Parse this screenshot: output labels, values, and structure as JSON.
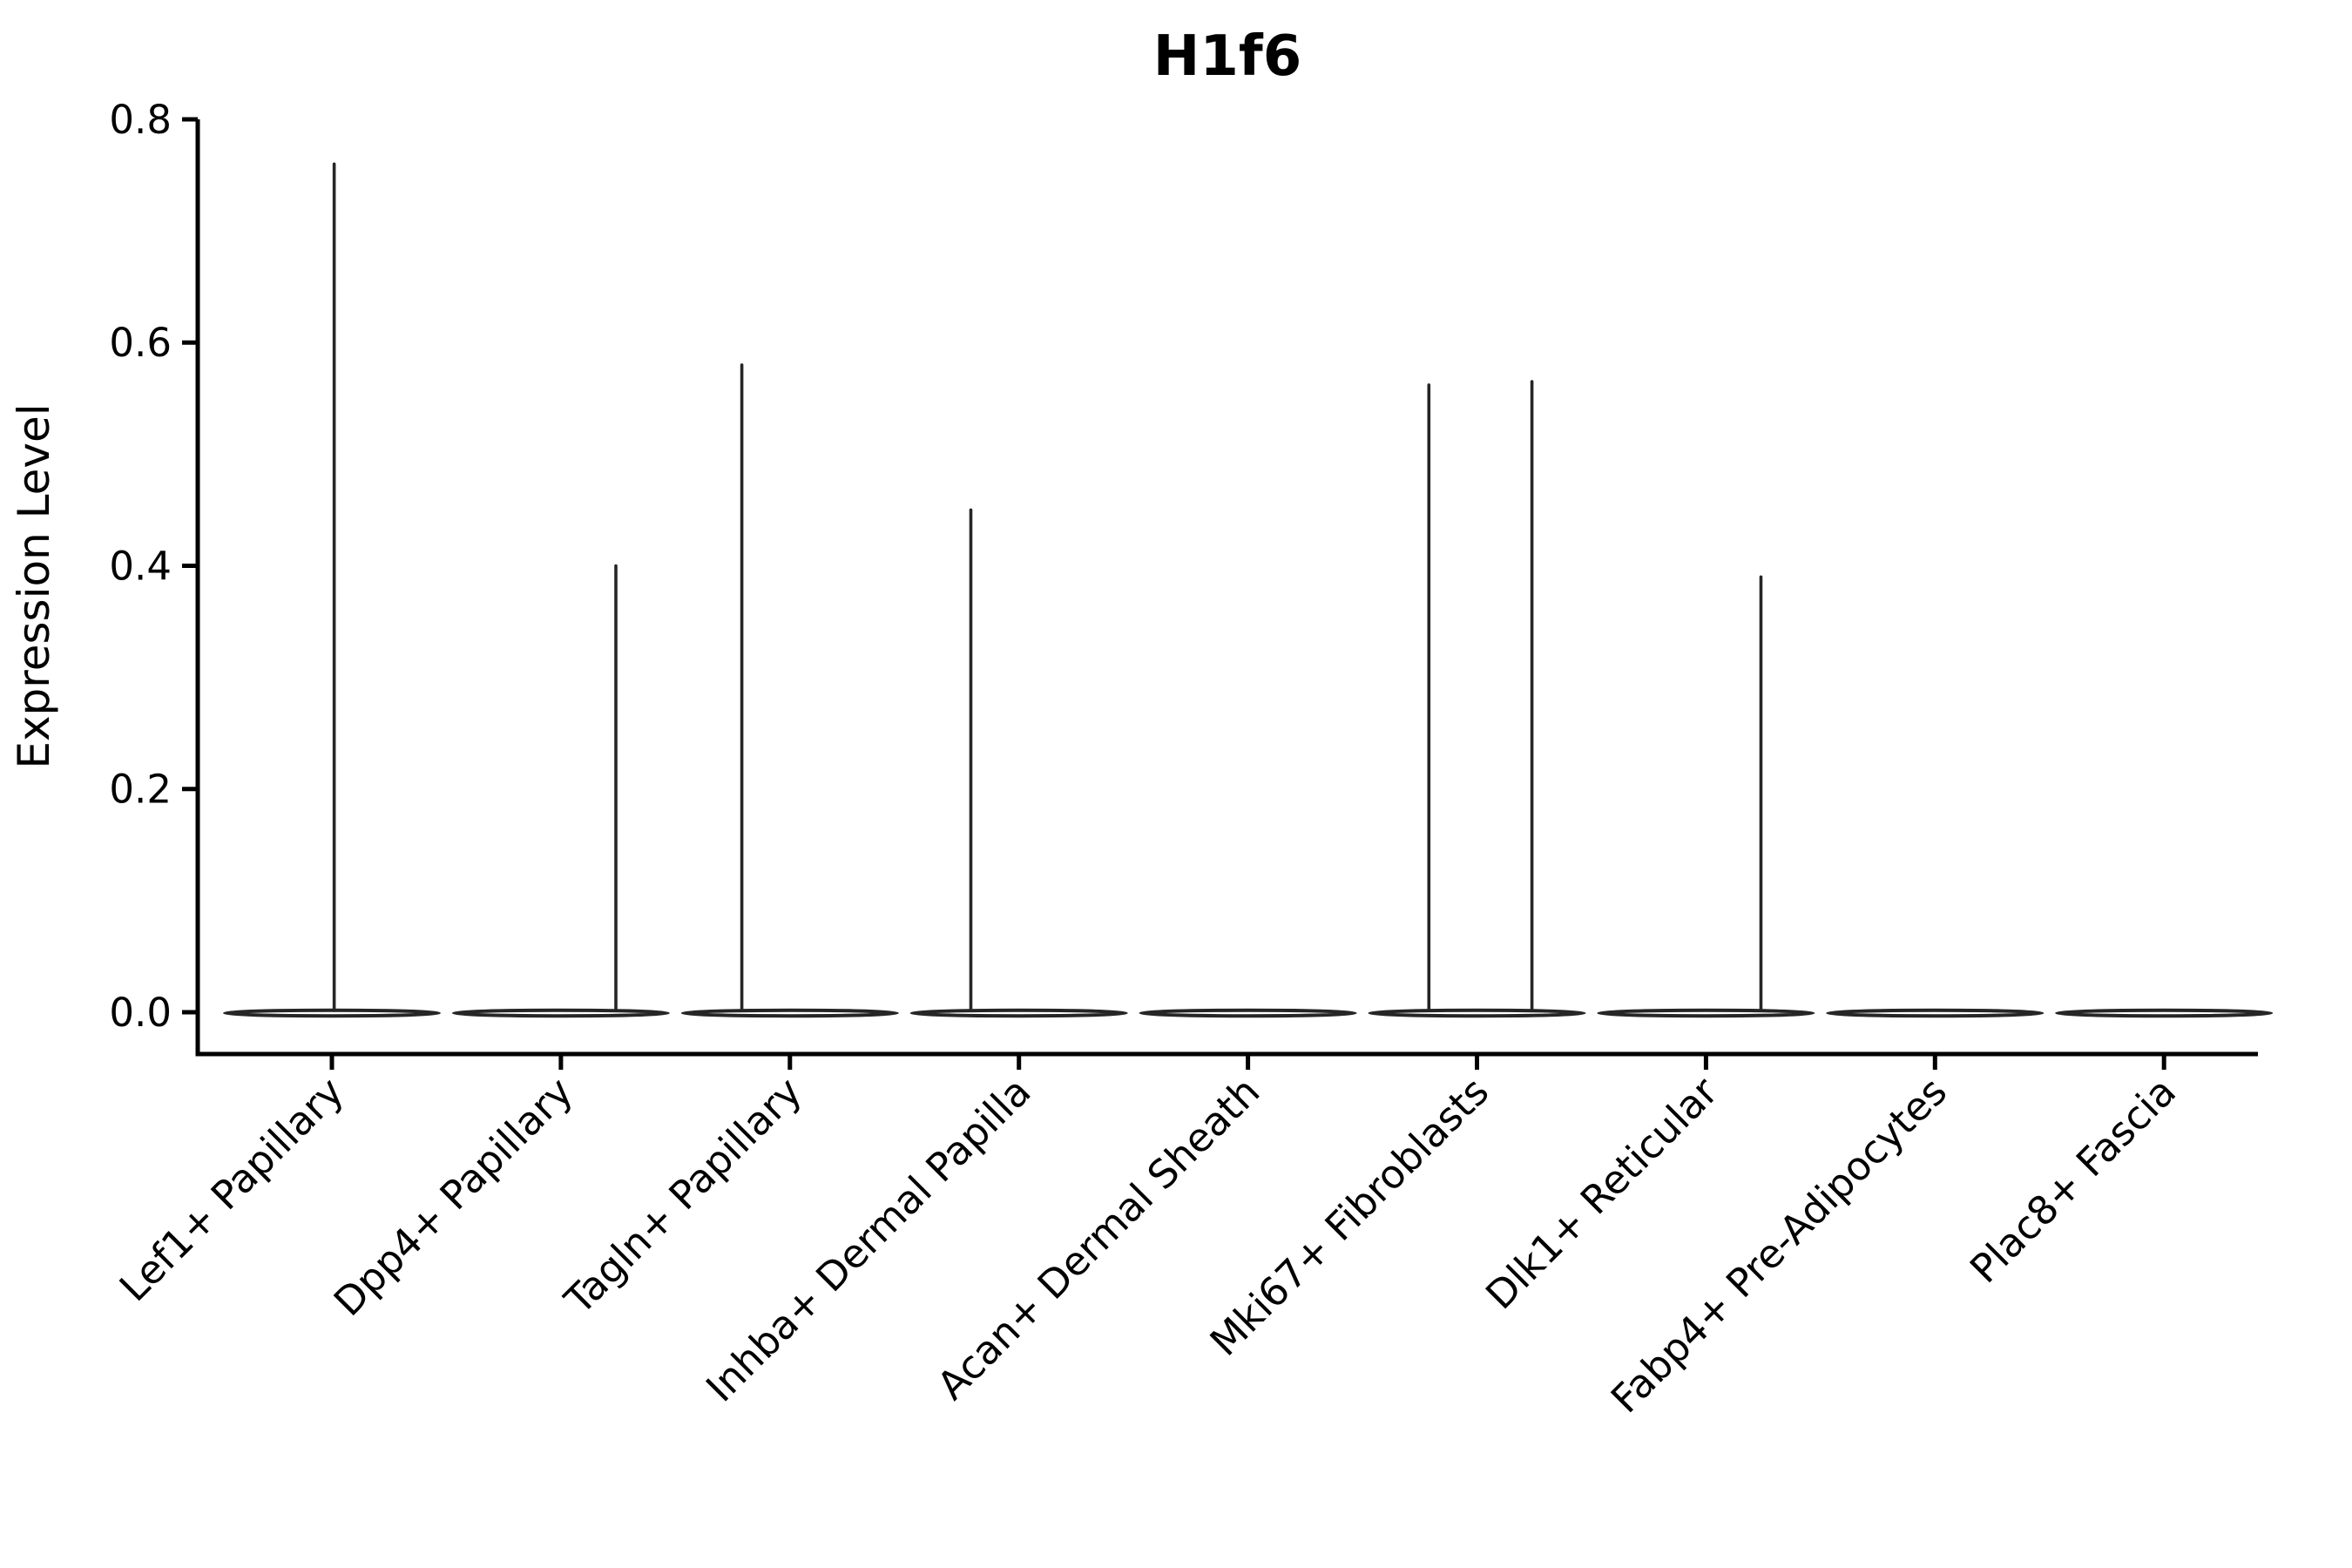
{
  "title": "H1f6",
  "ylabel": "Expression Level",
  "colors": {
    "axis": "#000000",
    "violin_stroke": "#262626",
    "violin_fill": "#ffffff",
    "background": "#ffffff",
    "text": "#000000"
  },
  "chart_data": {
    "type": "violin",
    "title": "H1f6",
    "xlabel": "",
    "ylabel": "Expression Level",
    "ylim": [
      -0.0375,
      0.8
    ],
    "yticks": [
      0.0,
      0.2,
      0.4,
      0.6,
      0.8
    ],
    "ytick_labels": [
      "0.0",
      "0.2",
      "0.4",
      "0.6",
      "0.8"
    ],
    "grid": false,
    "legend": "none",
    "x_label_rotation_deg": 45,
    "categories": [
      "Lef1+ Papillary",
      "Dpp4+ Papillary",
      "Tagln+ Papillary",
      "Inhba+ Dermal Papilla",
      "Acan+ Dermal Sheath",
      "Mki67+ Fibroblasts",
      "Dlk1+ Reticular",
      "Fabp4+ Pre-Adipocytes",
      "Plac8+ Fascia"
    ],
    "violins": [
      {
        "category": "Lef1+ Papillary",
        "base": 0.0,
        "spikes": [
          {
            "offset": 0.01,
            "peak": 0.76
          }
        ]
      },
      {
        "category": "Dpp4+ Papillary",
        "base": 0.0,
        "spikes": [
          {
            "offset": 0.24,
            "peak": 0.4
          }
        ]
      },
      {
        "category": "Tagln+ Papillary",
        "base": 0.0,
        "spikes": [
          {
            "offset": -0.21,
            "peak": 0.58
          }
        ]
      },
      {
        "category": "Inhba+ Dermal Papilla",
        "base": 0.0,
        "spikes": [
          {
            "offset": -0.21,
            "peak": 0.45
          }
        ]
      },
      {
        "category": "Acan+ Dermal Sheath",
        "base": 0.0,
        "spikes": []
      },
      {
        "category": "Mki67+ Fibroblasts",
        "base": 0.0,
        "spikes": [
          {
            "offset": -0.21,
            "peak": 0.562
          },
          {
            "offset": 0.24,
            "peak": 0.565
          }
        ]
      },
      {
        "category": "Dlk1+ Reticular",
        "base": 0.0,
        "spikes": [
          {
            "offset": 0.24,
            "peak": 0.39
          }
        ]
      },
      {
        "category": "Fabp4+ Pre-Adipocytes",
        "base": 0.0,
        "spikes": []
      },
      {
        "category": "Plac8+ Fascia",
        "base": 0.0,
        "spikes": []
      }
    ]
  }
}
